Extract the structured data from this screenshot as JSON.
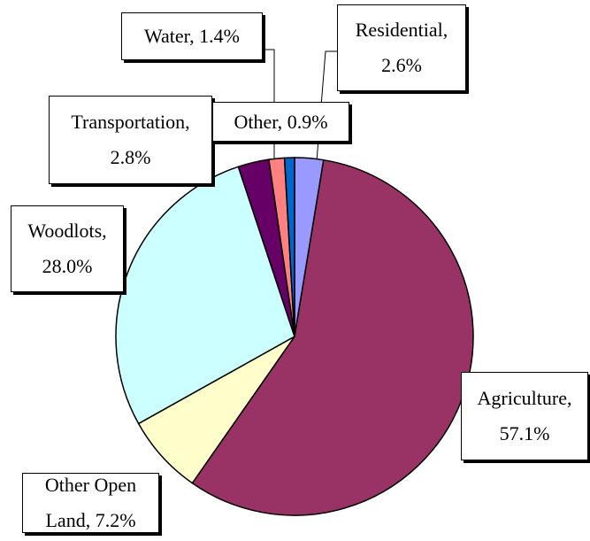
{
  "chart_data": {
    "type": "pie",
    "categories": [
      "Residential,",
      "Agriculture,",
      "Other Open Land,",
      "Woodlots,",
      "Transportation,",
      "Water,",
      "Other,"
    ],
    "values": [
      2.6,
      57.1,
      7.2,
      28.0,
      2.8,
      1.4,
      0.9
    ],
    "value_labels": [
      "2.6%",
      "57.1%",
      "7.2%",
      "28.0%",
      "2.8%",
      "1.4%",
      "0.9%"
    ],
    "colors": [
      "#9999ff",
      "#993366",
      "#ffffcc",
      "#ccffff",
      "#660066",
      "#ff8080",
      "#0066cc"
    ]
  }
}
